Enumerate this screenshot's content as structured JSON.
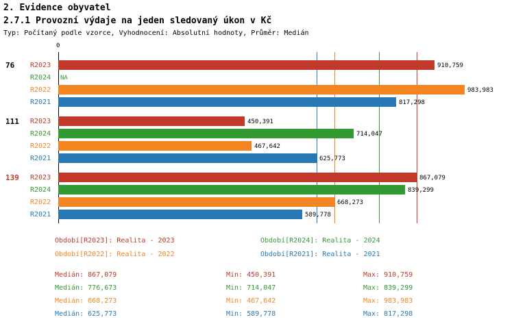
{
  "header": {
    "title": "2. Evidence obyvatel",
    "subtitle": "2.7.1 Provozní výdaje na jeden sledovaný úkon v Kč",
    "meta": "Typ: Počítaný podle vzorce, Vyhodnocení: Absolutní hodnoty, Průměr: Medián"
  },
  "colors": {
    "R2023": "#c0392b",
    "R2024": "#339933",
    "R2022": "#f28522",
    "R2021": "#2878b5",
    "axis": "#000000"
  },
  "chart_data": {
    "type": "bar",
    "orientation": "horizontal",
    "x_axis": {
      "zero_label": "0",
      "xlim": [
        0,
        1020000
      ],
      "grid": "median-lines"
    },
    "series_order": [
      "R2023",
      "R2024",
      "R2022",
      "R2021"
    ],
    "groups": [
      {
        "label": "76",
        "label_color": "#000000",
        "bars": [
          {
            "series": "R2023",
            "value": 910759,
            "display": "910,759"
          },
          {
            "series": "R2024",
            "value": null,
            "display": "NA"
          },
          {
            "series": "R2022",
            "value": 983983,
            "display": "983,983"
          },
          {
            "series": "R2021",
            "value": 817298,
            "display": "817,298"
          }
        ]
      },
      {
        "label": "111",
        "label_color": "#000000",
        "bars": [
          {
            "series": "R2023",
            "value": 450391,
            "display": "450,391"
          },
          {
            "series": "R2024",
            "value": 714047,
            "display": "714,047"
          },
          {
            "series": "R2022",
            "value": 467642,
            "display": "467,642"
          },
          {
            "series": "R2021",
            "value": 625773,
            "display": "625,773"
          }
        ]
      },
      {
        "label": "139",
        "label_color": "#c0392b",
        "bars": [
          {
            "series": "R2023",
            "value": 867079,
            "display": "867,079"
          },
          {
            "series": "R2024",
            "value": 839299,
            "display": "839,299"
          },
          {
            "series": "R2022",
            "value": 668273,
            "display": "668,273"
          },
          {
            "series": "R2021",
            "value": 589778,
            "display": "589,778"
          }
        ]
      }
    ],
    "median_lines": [
      {
        "series": "R2023",
        "value": 867079
      },
      {
        "series": "R2024",
        "value": 776673
      },
      {
        "series": "R2022",
        "value": 668273
      },
      {
        "series": "R2021",
        "value": 625773
      }
    ]
  },
  "legend": {
    "items": [
      {
        "series": "R2023",
        "text": "Období[R2023]: Realita - 2023"
      },
      {
        "series": "R2024",
        "text": "Období[R2024]: Realita - 2024"
      },
      {
        "series": "R2022",
        "text": "Období[R2022]: Realita - 2022"
      },
      {
        "series": "R2021",
        "text": "Období[R2021]: Realita - 2021"
      }
    ]
  },
  "stats": {
    "rows": [
      {
        "series": "R2023",
        "median": "Medián: 867,079",
        "min": "Min: 450,391",
        "max": "Max: 910,759"
      },
      {
        "series": "R2024",
        "median": "Medián: 776,673",
        "min": "Min: 714,047",
        "max": "Max: 839,299"
      },
      {
        "series": "R2022",
        "median": "Medián: 668,273",
        "min": "Min: 467,642",
        "max": "Max: 983,983"
      },
      {
        "series": "R2021",
        "median": "Medián: 625,773",
        "min": "Min: 589,778",
        "max": "Max: 817,298"
      }
    ]
  }
}
